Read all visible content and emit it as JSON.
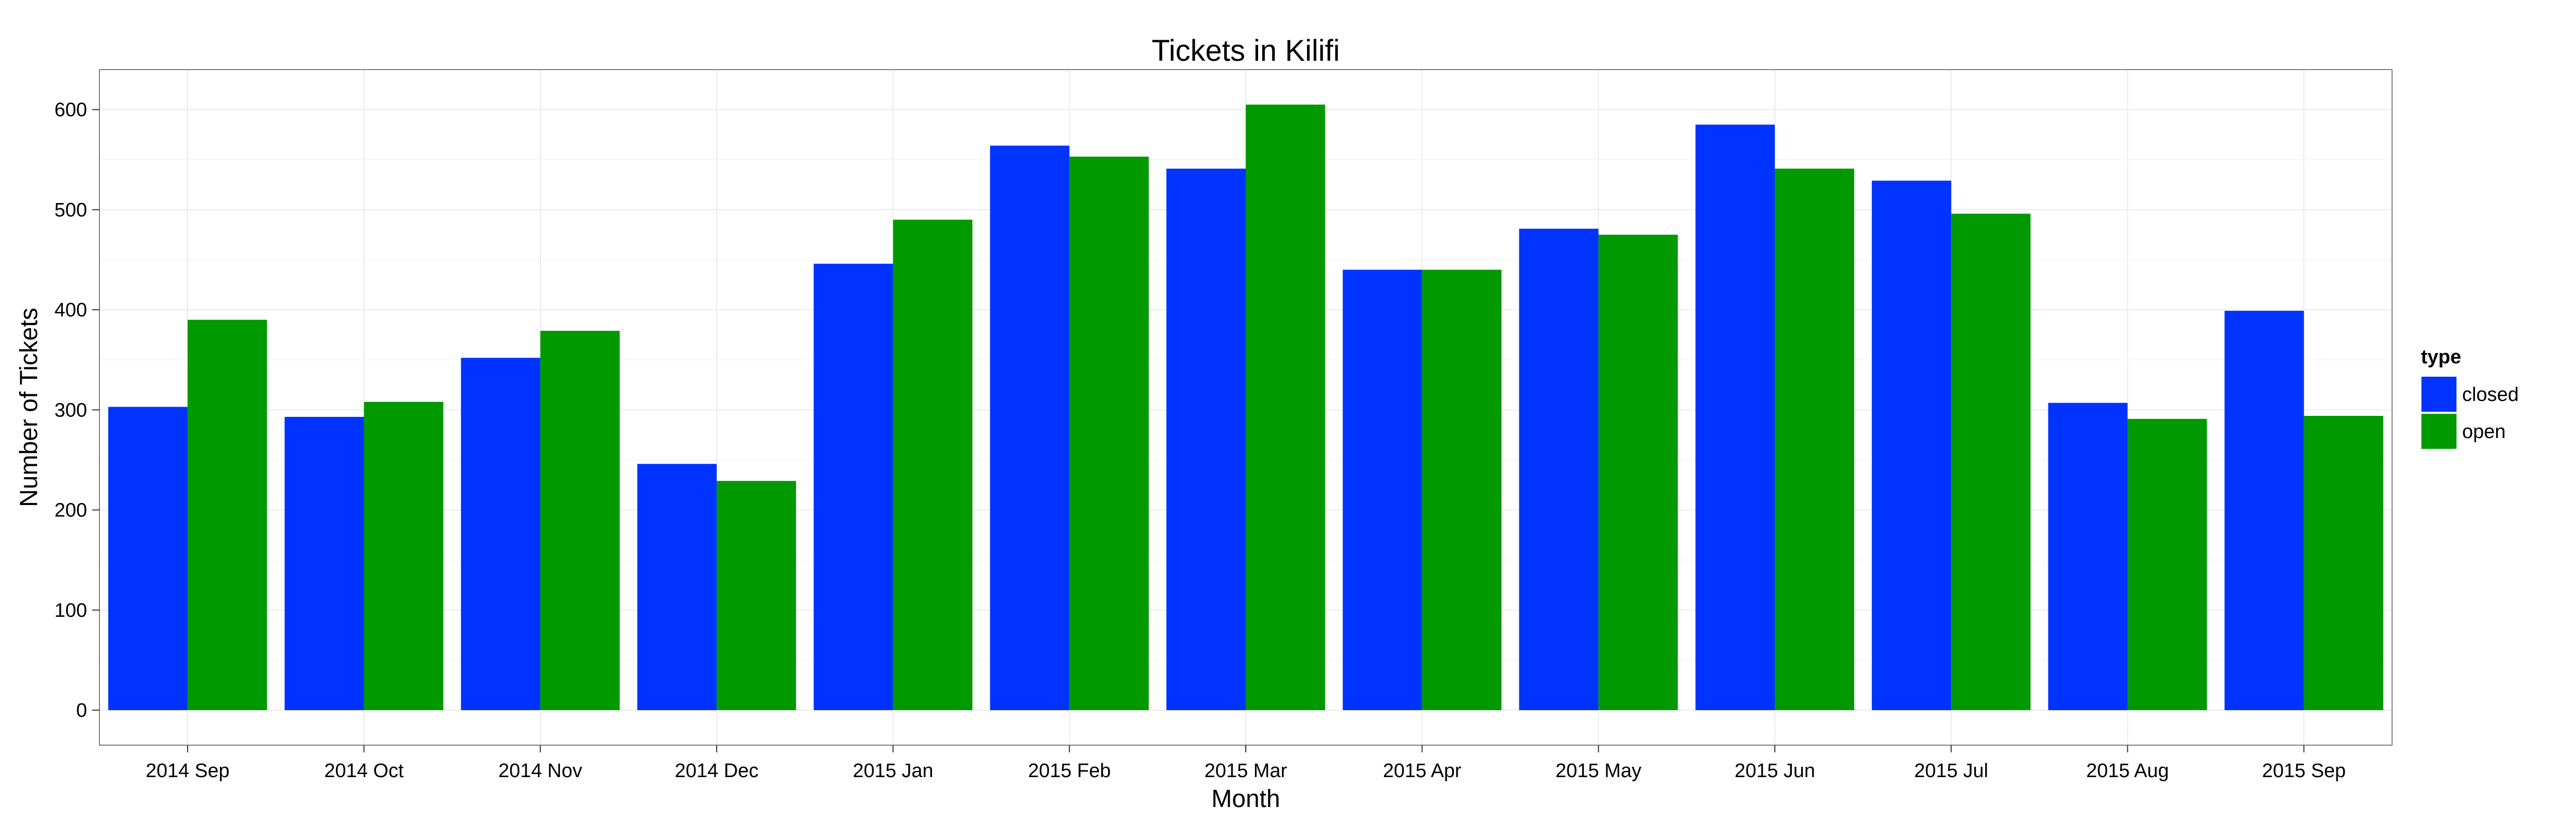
{
  "chart_data": {
    "type": "bar",
    "title": "Tickets in Kilifi",
    "xlabel": "Month",
    "ylabel": "Number of Tickets",
    "categories": [
      "2014 Sep",
      "2014 Oct",
      "2014 Nov",
      "2014 Dec",
      "2015 Jan",
      "2015 Feb",
      "2015 Mar",
      "2015 Apr",
      "2015 May",
      "2015 Jun",
      "2015 Jul",
      "2015 Aug",
      "2015 Sep"
    ],
    "series": [
      {
        "name": "closed",
        "color": "#0033ff",
        "values": [
          303,
          293,
          352,
          246,
          446,
          564,
          541,
          440,
          481,
          585,
          529,
          307,
          399
        ]
      },
      {
        "name": "open",
        "color": "#009900",
        "values": [
          390,
          308,
          379,
          229,
          490,
          553,
          605,
          440,
          475,
          541,
          496,
          291,
          294
        ]
      }
    ],
    "yticks": [
      0,
      100,
      200,
      300,
      400,
      500,
      600
    ],
    "ylim": [
      -35,
      640
    ],
    "grid": true,
    "legend": {
      "title": "type",
      "position": "right"
    }
  }
}
